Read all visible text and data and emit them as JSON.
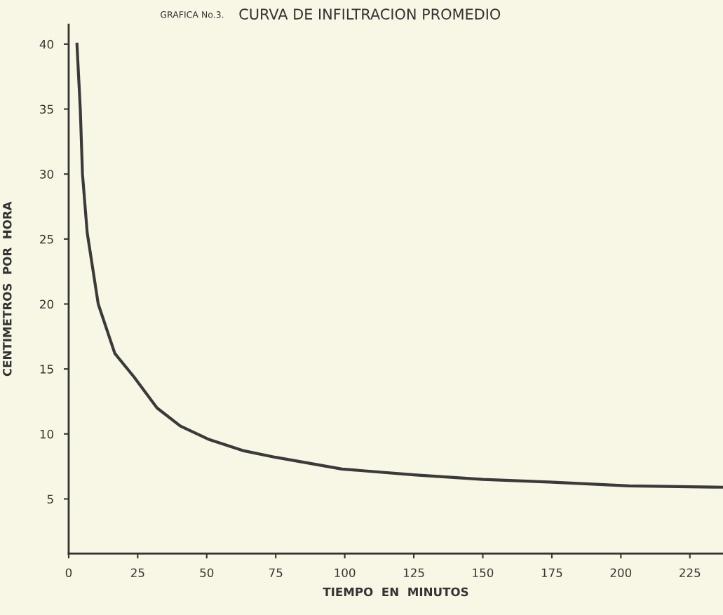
{
  "chart_data": {
    "type": "line",
    "title": "CURVA DE INFILTRACION PROMEDIO",
    "subtitle": "GRAFICA No.3.",
    "xlabel": "TIEMPO  EN  MINUTOS",
    "ylabel": "CENTIMETROS  POR  HORA",
    "series": [
      {
        "color": "#3a3a3a",
        "x": [
          3,
          4.2,
          5,
          6.7,
          10.7,
          16.7,
          23.6,
          32,
          40.5,
          50.5,
          63.5,
          75,
          99,
          125,
          150,
          174,
          203,
          237
        ],
        "values": [
          40,
          35,
          30,
          25.5,
          20,
          16.2,
          14.4,
          12,
          10.6,
          9.6,
          8.7,
          8.2,
          7.3,
          6.85,
          6.5,
          6.3,
          6.0,
          5.9
        ]
      }
    ],
    "xlim": [
      0,
      237
    ],
    "xticks": [
      0,
      25,
      50,
      75,
      100,
      125,
      150,
      175,
      200,
      225
    ],
    "ylim": [
      0.8,
      41.5
    ],
    "yticks": [
      5,
      10,
      15,
      20,
      25,
      30,
      35,
      40
    ],
    "grid": false,
    "legend": false,
    "marker": "none",
    "line_style": "solid"
  }
}
